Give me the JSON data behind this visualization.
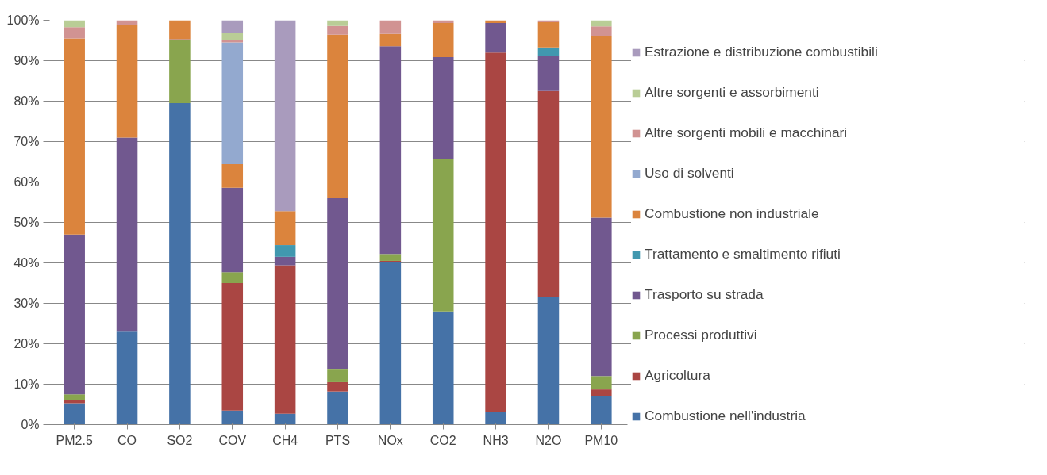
{
  "chart_data": {
    "type": "bar",
    "stacked": true,
    "categories": [
      "PM2.5",
      "CO",
      "SO2",
      "COV",
      "CH4",
      "PTS",
      "NOx",
      "CO2",
      "NH3",
      "N2O",
      "PM10"
    ],
    "series": [
      {
        "name": "Combustione nell'industria",
        "color": "#4572a7",
        "values": [
          5.3,
          23,
          79.5,
          3.5,
          2.7,
          8.2,
          40.2,
          28,
          3.2,
          31.6,
          7
        ]
      },
      {
        "name": "Agricoltura",
        "color": "#aa4643",
        "values": [
          0.7,
          0,
          0,
          31.5,
          36.7,
          2.3,
          0.3,
          0,
          88.8,
          50.9,
          1.7
        ]
      },
      {
        "name": "Processi produttivi",
        "color": "#89a54e",
        "values": [
          1.5,
          0,
          15.5,
          2.7,
          0,
          3.3,
          1.7,
          37.6,
          0,
          0,
          3.3
        ]
      },
      {
        "name": "Trasporto su strada",
        "color": "#71588f",
        "values": [
          39.5,
          48,
          0.3,
          20.9,
          2.1,
          42.2,
          51.4,
          25.3,
          7.3,
          8.7,
          39.2
        ]
      },
      {
        "name": "Trattamento e smaltimento rifiuti",
        "color": "#4198af",
        "values": [
          0,
          0,
          0,
          0,
          2.9,
          0,
          0,
          0,
          0,
          2.1,
          0
        ]
      },
      {
        "name": "Combustione non industriale",
        "color": "#db843d",
        "values": [
          48.5,
          27.8,
          4.7,
          5.8,
          8.4,
          40.4,
          3,
          8.4,
          0.7,
          6.2,
          44.8
        ]
      },
      {
        "name": "Uso di solventi",
        "color": "#93a9cf",
        "values": [
          0,
          0,
          0,
          30.1,
          0,
          0,
          0,
          0,
          0,
          0,
          0
        ]
      },
      {
        "name": "Altre sorgenti mobili e macchinari",
        "color": "#d19392",
        "values": [
          2.8,
          1.2,
          0,
          0.7,
          0,
          2.2,
          3.4,
          0.7,
          0,
          0.5,
          2.5
        ]
      },
      {
        "name": "Altre sorgenti e assorbimenti",
        "color": "#b9cd96",
        "values": [
          1.7,
          0,
          0,
          1.6,
          0,
          1.4,
          0,
          0,
          0,
          0,
          1.5
        ]
      },
      {
        "name": "Estrazione e distribuzione combustibili",
        "color": "#a99bbd",
        "values": [
          0,
          0,
          0,
          3.2,
          47.2,
          0,
          0,
          0,
          0,
          0,
          0
        ]
      }
    ],
    "ylim": [
      0,
      100
    ],
    "yticks": [
      {
        "value": 0,
        "label": "0%"
      },
      {
        "value": 10,
        "label": "10%"
      },
      {
        "value": 20,
        "label": "20%"
      },
      {
        "value": 30,
        "label": "30%"
      },
      {
        "value": 40,
        "label": "40%"
      },
      {
        "value": 50,
        "label": "50%"
      },
      {
        "value": 60,
        "label": "60%"
      },
      {
        "value": 70,
        "label": "70%"
      },
      {
        "value": 80,
        "label": "80%"
      },
      {
        "value": 90,
        "label": "90%"
      },
      {
        "value": 100,
        "label": "100%"
      }
    ],
    "grid": "y",
    "legend": "right"
  }
}
